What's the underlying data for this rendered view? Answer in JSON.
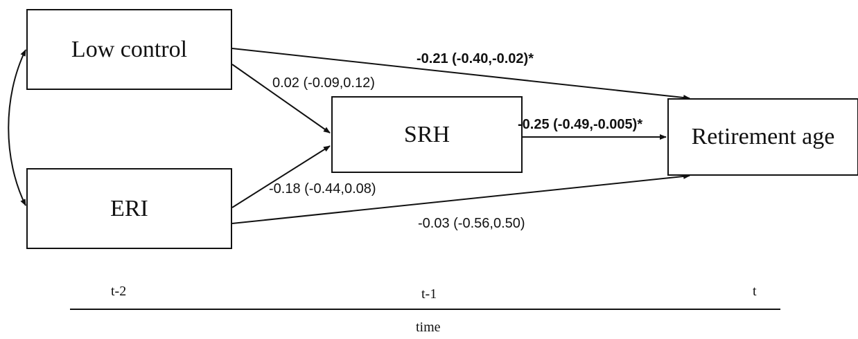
{
  "nodes": {
    "low_control": "Low control",
    "eri": "ERI",
    "srh": "SRH",
    "retirement_age": "Retirement age"
  },
  "edges": {
    "low_control_to_retirement": "-0.21 (-0.40,-0.02)*",
    "low_control_to_srh": "0.02 (-0.09,0.12)",
    "srh_to_retirement": "-0.25 (-0.49,-0.005)*",
    "eri_to_srh": "-0.18 (-0.44,0.08)",
    "eri_to_retirement": "-0.03 (-0.56,0.50)"
  },
  "timeline": {
    "t_minus_2": "t-2",
    "t_minus_1": "t-1",
    "t": "t",
    "axis_label": "time"
  },
  "colors": {
    "line": "#111111",
    "background": "#ffffff"
  }
}
